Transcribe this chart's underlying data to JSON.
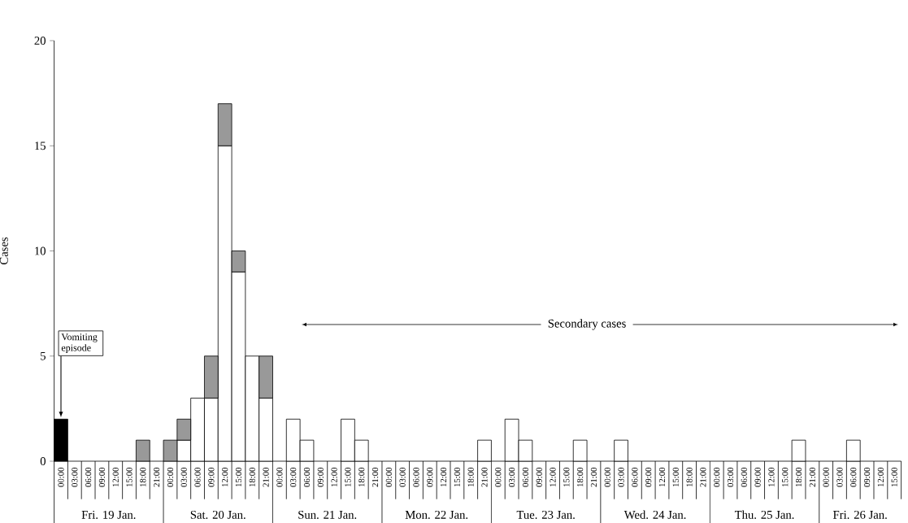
{
  "chart_data": {
    "type": "bar",
    "stacked": true,
    "ylabel": "Cases",
    "categories": [
      "00:00",
      "03:00",
      "06:00",
      "09:00",
      "12:00",
      "15:00",
      "18:00",
      "21:00",
      "00:00",
      "03:00",
      "06:00",
      "09:00",
      "12:00",
      "15:00",
      "18:00",
      "21:00",
      "00:00",
      "03:00",
      "06:00",
      "09:00",
      "12:00",
      "15:00",
      "18:00",
      "21:00",
      "00:00",
      "03:00",
      "06:00",
      "09:00",
      "12:00",
      "15:00",
      "18:00",
      "21:00",
      "00:00",
      "03:00",
      "06:00",
      "09:00",
      "12:00",
      "15:00",
      "18:00",
      "21:00",
      "00:00",
      "03:00",
      "06:00",
      "09:00",
      "12:00",
      "15:00",
      "18:00",
      "21:00",
      "00:00",
      "03:00",
      "06:00",
      "09:00",
      "12:00",
      "15:00",
      "18:00",
      "21:00",
      "00:00",
      "03:00",
      "06:00",
      "09:00",
      "12:00",
      "15:00"
    ],
    "series": [
      {
        "color": "#000000",
        "values": [
          2,
          0,
          0,
          0,
          0,
          0,
          0,
          0,
          0,
          0,
          0,
          0,
          0,
          0,
          0,
          0,
          0,
          0,
          0,
          0,
          0,
          0,
          0,
          0,
          0,
          0,
          0,
          0,
          0,
          0,
          0,
          0,
          0,
          0,
          0,
          0,
          0,
          0,
          0,
          0,
          0,
          0,
          0,
          0,
          0,
          0,
          0,
          0,
          0,
          0,
          0,
          0,
          0,
          0,
          0,
          0,
          0,
          0,
          0,
          0,
          0,
          0
        ]
      },
      {
        "color": "#ffffff",
        "values": [
          0,
          0,
          0,
          0,
          0,
          0,
          0,
          0,
          0,
          1,
          3,
          3,
          15,
          9,
          5,
          3,
          0,
          2,
          1,
          0,
          0,
          2,
          1,
          0,
          0,
          0,
          0,
          0,
          0,
          0,
          0,
          1,
          0,
          2,
          1,
          0,
          0,
          0,
          1,
          0,
          0,
          1,
          0,
          0,
          0,
          0,
          0,
          0,
          0,
          0,
          0,
          0,
          0,
          0,
          1,
          0,
          0,
          0,
          1,
          0,
          0,
          0
        ]
      },
      {
        "color": "#999999",
        "values": [
          0,
          0,
          0,
          0,
          0,
          0,
          1,
          0,
          1,
          1,
          0,
          2,
          2,
          1,
          0,
          2,
          0,
          0,
          0,
          0,
          0,
          0,
          0,
          0,
          0,
          0,
          0,
          0,
          0,
          0,
          0,
          0,
          0,
          0,
          0,
          0,
          0,
          0,
          0,
          0,
          0,
          0,
          0,
          0,
          0,
          0,
          0,
          0,
          0,
          0,
          0,
          0,
          0,
          0,
          0,
          0,
          0,
          0,
          0,
          0,
          0,
          0
        ]
      }
    ],
    "ylim": [
      0,
      20
    ],
    "yticks": [
      0,
      5,
      10,
      15,
      20
    ],
    "annotations": [
      {
        "text": "Vomiting episode",
        "x": "00:00",
        "y": 2
      },
      "Secondary cases",
      "Fri. 19 Jan.",
      "Sat. 20 Jan.",
      "Sun. 21 Jan.",
      "Mon. 22 Jan.",
      "Tue. 23 Jan.",
      "Wed. 24 Jan.",
      "Thu. 25 Jan.",
      "Fri. 26 Jan."
    ]
  }
}
